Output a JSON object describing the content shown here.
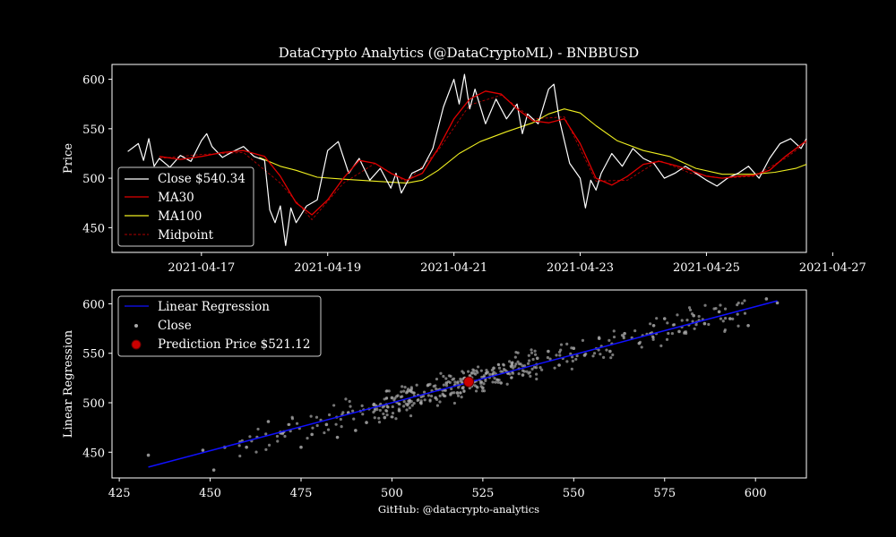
{
  "page": {
    "title": "DataCrypto Analytics (@DataCryptoML) - BNBBUSD",
    "footer": "GitHub: @datacrypto-analytics"
  },
  "colors": {
    "background": "#000000",
    "close": "#ffffff",
    "ma30": "#e00000",
    "ma100": "#f0f020",
    "midpoint": "#b00000",
    "regression": "#1010ff",
    "scatter": "#aaaaaa",
    "prediction": "#cc0000"
  },
  "chart_data": [
    {
      "type": "line",
      "title": "DataCrypto Analytics (@DataCryptoML) - BNBBUSD",
      "xlabel": "",
      "ylabel": "Price",
      "x_range_days": [
        "2021-04-15T14:00",
        "2021-04-26T14:00"
      ],
      "ylim": [
        425,
        615
      ],
      "x_ticks": [
        "2021-04-17",
        "2021-04-19",
        "2021-04-21",
        "2021-04-23",
        "2021-04-25",
        "2021-04-27"
      ],
      "y_ticks": [
        450,
        500,
        550,
        600
      ],
      "legend_position": "lower-left",
      "legend": [
        "Close $540.34",
        "MA30",
        "MA100",
        "Midpoint"
      ],
      "series": [
        {
          "name": "Close $540.34",
          "style": "solid",
          "points": [
            [
              "2021-04-15T20:00",
              527
            ],
            [
              "2021-04-16T00:00",
              535
            ],
            [
              "2021-04-16T02:00",
              518
            ],
            [
              "2021-04-16T04:00",
              540
            ],
            [
              "2021-04-16T06:00",
              512
            ],
            [
              "2021-04-16T08:00",
              520
            ],
            [
              "2021-04-16T12:00",
              511
            ],
            [
              "2021-04-16T16:00",
              523
            ],
            [
              "2021-04-16T20:00",
              517
            ],
            [
              "2021-04-17T00:00",
              538
            ],
            [
              "2021-04-17T02:00",
              545
            ],
            [
              "2021-04-17T04:00",
              532
            ],
            [
              "2021-04-17T08:00",
              521
            ],
            [
              "2021-04-17T12:00",
              527
            ],
            [
              "2021-04-17T16:00",
              532
            ],
            [
              "2021-04-17T20:00",
              522
            ],
            [
              "2021-04-18T00:00",
              518
            ],
            [
              "2021-04-18T02:00",
              468
            ],
            [
              "2021-04-18T04:00",
              455
            ],
            [
              "2021-04-18T06:00",
              472
            ],
            [
              "2021-04-18T08:00",
              432
            ],
            [
              "2021-04-18T10:00",
              470
            ],
            [
              "2021-04-18T12:00",
              455
            ],
            [
              "2021-04-18T16:00",
              472
            ],
            [
              "2021-04-18T20:00",
              478
            ],
            [
              "2021-04-19T00:00",
              528
            ],
            [
              "2021-04-19T04:00",
              537
            ],
            [
              "2021-04-19T08:00",
              505
            ],
            [
              "2021-04-19T12:00",
              520
            ],
            [
              "2021-04-19T16:00",
              498
            ],
            [
              "2021-04-19T20:00",
              510
            ],
            [
              "2021-04-20T00:00",
              490
            ],
            [
              "2021-04-20T02:00",
              505
            ],
            [
              "2021-04-20T04:00",
              485
            ],
            [
              "2021-04-20T08:00",
              505
            ],
            [
              "2021-04-20T12:00",
              510
            ],
            [
              "2021-04-20T16:00",
              530
            ],
            [
              "2021-04-20T20:00",
              572
            ],
            [
              "2021-04-21T00:00",
              600
            ],
            [
              "2021-04-21T02:00",
              575
            ],
            [
              "2021-04-21T04:00",
              605
            ],
            [
              "2021-04-21T06:00",
              570
            ],
            [
              "2021-04-21T08:00",
              590
            ],
            [
              "2021-04-21T12:00",
              555
            ],
            [
              "2021-04-21T16:00",
              580
            ],
            [
              "2021-04-21T20:00",
              560
            ],
            [
              "2021-04-22T00:00",
              575
            ],
            [
              "2021-04-22T02:00",
              545
            ],
            [
              "2021-04-22T04:00",
              565
            ],
            [
              "2021-04-22T08:00",
              555
            ],
            [
              "2021-04-22T12:00",
              590
            ],
            [
              "2021-04-22T14:00",
              595
            ],
            [
              "2021-04-22T16:00",
              560
            ],
            [
              "2021-04-22T20:00",
              515
            ],
            [
              "2021-04-23T00:00",
              500
            ],
            [
              "2021-04-23T02:00",
              470
            ],
            [
              "2021-04-23T04:00",
              498
            ],
            [
              "2021-04-23T06:00",
              488
            ],
            [
              "2021-04-23T08:00",
              505
            ],
            [
              "2021-04-23T12:00",
              525
            ],
            [
              "2021-04-23T16:00",
              512
            ],
            [
              "2021-04-23T20:00",
              530
            ],
            [
              "2021-04-24T00:00",
              520
            ],
            [
              "2021-04-24T04:00",
              515
            ],
            [
              "2021-04-24T08:00",
              500
            ],
            [
              "2021-04-24T12:00",
              505
            ],
            [
              "2021-04-24T16:00",
              512
            ],
            [
              "2021-04-24T20:00",
              505
            ],
            [
              "2021-04-25T00:00",
              498
            ],
            [
              "2021-04-25T04:00",
              492
            ],
            [
              "2021-04-25T08:00",
              500
            ],
            [
              "2021-04-25T12:00",
              505
            ],
            [
              "2021-04-25T16:00",
              512
            ],
            [
              "2021-04-25T20:00",
              500
            ],
            [
              "2021-04-26T00:00",
              520
            ],
            [
              "2021-04-26T04:00",
              535
            ],
            [
              "2021-04-26T08:00",
              540
            ],
            [
              "2021-04-26T12:00",
              530
            ],
            [
              "2021-04-26T14:00",
              540
            ]
          ]
        },
        {
          "name": "MA30",
          "style": "solid",
          "points": [
            [
              "2021-04-16T08:00",
              522
            ],
            [
              "2021-04-16T16:00",
              519
            ],
            [
              "2021-04-17T00:00",
              522
            ],
            [
              "2021-04-17T08:00",
              526
            ],
            [
              "2021-04-17T16:00",
              528
            ],
            [
              "2021-04-18T00:00",
              522
            ],
            [
              "2021-04-18T06:00",
              502
            ],
            [
              "2021-04-18T12:00",
              475
            ],
            [
              "2021-04-18T18:00",
              463
            ],
            [
              "2021-04-19T00:00",
              478
            ],
            [
              "2021-04-19T06:00",
              500
            ],
            [
              "2021-04-19T12:00",
              518
            ],
            [
              "2021-04-19T18:00",
              515
            ],
            [
              "2021-04-20T00:00",
              505
            ],
            [
              "2021-04-20T06:00",
              498
            ],
            [
              "2021-04-20T12:00",
              505
            ],
            [
              "2021-04-20T18:00",
              530
            ],
            [
              "2021-04-21T00:00",
              560
            ],
            [
              "2021-04-21T06:00",
              580
            ],
            [
              "2021-04-21T12:00",
              588
            ],
            [
              "2021-04-21T18:00",
              585
            ],
            [
              "2021-04-22T00:00",
              570
            ],
            [
              "2021-04-22T06:00",
              558
            ],
            [
              "2021-04-22T12:00",
              556
            ],
            [
              "2021-04-22T18:00",
              560
            ],
            [
              "2021-04-23T00:00",
              535
            ],
            [
              "2021-04-23T06:00",
              500
            ],
            [
              "2021-04-23T12:00",
              493
            ],
            [
              "2021-04-23T18:00",
              502
            ],
            [
              "2021-04-24T00:00",
              514
            ],
            [
              "2021-04-24T06:00",
              517
            ],
            [
              "2021-04-24T12:00",
              513
            ],
            [
              "2021-04-24T18:00",
              508
            ],
            [
              "2021-04-25T00:00",
              502
            ],
            [
              "2021-04-25T06:00",
              500
            ],
            [
              "2021-04-25T12:00",
              502
            ],
            [
              "2021-04-25T18:00",
              503
            ],
            [
              "2021-04-26T00:00",
              508
            ],
            [
              "2021-04-26T06:00",
              522
            ],
            [
              "2021-04-26T14:00",
              538
            ]
          ]
        },
        {
          "name": "MA100",
          "style": "solid",
          "points": [
            [
              "2021-04-17T22:00",
              521
            ],
            [
              "2021-04-18T06:00",
              512
            ],
            [
              "2021-04-18T12:00",
              508
            ],
            [
              "2021-04-18T20:00",
              501
            ],
            [
              "2021-04-19T06:00",
              499
            ],
            [
              "2021-04-19T18:00",
              497
            ],
            [
              "2021-04-20T06:00",
              495
            ],
            [
              "2021-04-20T12:00",
              498
            ],
            [
              "2021-04-20T18:00",
              508
            ],
            [
              "2021-04-21T02:00",
              525
            ],
            [
              "2021-04-21T10:00",
              537
            ],
            [
              "2021-04-21T20:00",
              547
            ],
            [
              "2021-04-22T06:00",
              556
            ],
            [
              "2021-04-22T12:00",
              565
            ],
            [
              "2021-04-22T18:00",
              570
            ],
            [
              "2021-04-23T00:00",
              566
            ],
            [
              "2021-04-23T06:00",
              553
            ],
            [
              "2021-04-23T14:00",
              538
            ],
            [
              "2021-04-24T00:00",
              528
            ],
            [
              "2021-04-24T10:00",
              522
            ],
            [
              "2021-04-24T20:00",
              510
            ],
            [
              "2021-04-25T06:00",
              504
            ],
            [
              "2021-04-25T18:00",
              504
            ],
            [
              "2021-04-26T02:00",
              506
            ],
            [
              "2021-04-26T10:00",
              510
            ],
            [
              "2021-04-26T14:00",
              514
            ]
          ]
        },
        {
          "name": "Midpoint",
          "style": "dashed",
          "points": [
            [
              "2021-04-16T08:00",
              520
            ],
            [
              "2021-04-17T00:00",
              524
            ],
            [
              "2021-04-17T16:00",
              526
            ],
            [
              "2021-04-18T06:00",
              495
            ],
            [
              "2021-04-18T18:00",
              458
            ],
            [
              "2021-04-19T06:00",
              495
            ],
            [
              "2021-04-19T18:00",
              515
            ],
            [
              "2021-04-20T06:00",
              496
            ],
            [
              "2021-04-20T18:00",
              528
            ],
            [
              "2021-04-21T06:00",
              574
            ],
            [
              "2021-04-21T18:00",
              584
            ],
            [
              "2021-04-22T06:00",
              560
            ],
            [
              "2021-04-22T18:00",
              562
            ],
            [
              "2021-04-23T06:00",
              497
            ],
            [
              "2021-04-23T18:00",
              498
            ],
            [
              "2021-04-24T06:00",
              518
            ],
            [
              "2021-04-24T18:00",
              505
            ],
            [
              "2021-04-25T06:00",
              500
            ],
            [
              "2021-04-25T18:00",
              502
            ],
            [
              "2021-04-26T06:00",
              520
            ],
            [
              "2021-04-26T14:00",
              536
            ]
          ]
        }
      ]
    },
    {
      "type": "scatter",
      "xlabel": "",
      "ylabel": "Linear Regression",
      "xlim": [
        423,
        614
      ],
      "ylim": [
        424,
        614
      ],
      "x_ticks": [
        425,
        450,
        475,
        500,
        525,
        550,
        575,
        600
      ],
      "y_ticks": [
        450,
        500,
        550,
        600
      ],
      "legend_position": "upper-left",
      "legend": [
        "Linear Regression",
        "Close",
        "Prediction Price $521.12"
      ],
      "regression_line": {
        "x": [
          433,
          606
        ],
        "y": [
          435,
          603
        ]
      },
      "prediction": {
        "x": 521.12,
        "y": 521.12
      },
      "scatter_sample": [
        [
          433,
          447
        ],
        [
          448,
          452
        ],
        [
          451,
          432
        ],
        [
          454,
          455
        ],
        [
          460,
          455
        ],
        [
          466,
          481
        ],
        [
          470,
          470
        ],
        [
          475,
          455
        ],
        [
          478,
          468
        ],
        [
          482,
          478
        ],
        [
          485,
          465
        ],
        [
          488,
          490
        ],
        [
          490,
          472
        ],
        [
          493,
          480
        ],
        [
          495,
          498
        ],
        [
          498,
          485
        ],
        [
          500,
          505
        ],
        [
          502,
          492
        ],
        [
          505,
          512
        ],
        [
          508,
          500
        ],
        [
          510,
          518
        ],
        [
          512,
          505
        ],
        [
          515,
          520
        ],
        [
          518,
          510
        ],
        [
          520,
          525
        ],
        [
          522,
          530
        ],
        [
          525,
          515
        ],
        [
          528,
          535
        ],
        [
          530,
          520
        ],
        [
          533,
          540
        ],
        [
          536,
          528
        ],
        [
          540,
          545
        ],
        [
          543,
          552
        ],
        [
          546,
          538
        ],
        [
          550,
          555
        ],
        [
          553,
          548
        ],
        [
          557,
          565
        ],
        [
          560,
          552
        ],
        [
          564,
          570
        ],
        [
          568,
          560
        ],
        [
          572,
          578
        ],
        [
          575,
          585
        ],
        [
          579,
          572
        ],
        [
          583,
          588
        ],
        [
          586,
          580
        ],
        [
          590,
          592
        ],
        [
          593,
          585
        ],
        [
          598,
          578
        ],
        [
          603,
          605
        ],
        [
          606,
          601
        ]
      ]
    }
  ]
}
